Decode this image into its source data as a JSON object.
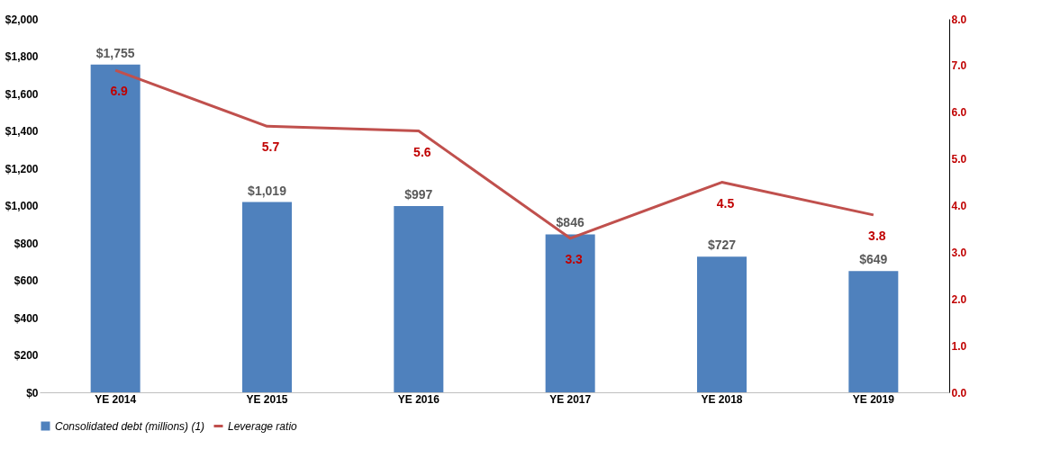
{
  "chart_data": {
    "type": "bar",
    "categories": [
      "YE 2014",
      "YE 2015",
      "YE 2016",
      "YE 2017",
      "YE 2018",
      "YE 2019"
    ],
    "series": [
      {
        "name": "Consolidated debt (millions) (1)",
        "color": "#4f81bd",
        "values": [
          1755,
          1019,
          997,
          846,
          727,
          649
        ],
        "value_labels": [
          "$1,755",
          "$1,019",
          "$997",
          "$846",
          "$727",
          "$649"
        ]
      },
      {
        "name": "Leverage ratio",
        "type": "line",
        "axis": "y2",
        "color": "#c0504d",
        "values": [
          6.9,
          5.7,
          5.6,
          3.3,
          4.5,
          3.8
        ],
        "value_labels": [
          "6.9",
          "5.7",
          "5.6",
          "3.3",
          "4.5",
          "3.8"
        ]
      }
    ],
    "ylim": [
      0,
      2000
    ],
    "yticks": [
      {
        "value": 0,
        "label": "$0"
      },
      {
        "value": 200,
        "label": "$200"
      },
      {
        "value": 400,
        "label": "$400"
      },
      {
        "value": 600,
        "label": "$600"
      },
      {
        "value": 800,
        "label": "$800"
      },
      {
        "value": 1000,
        "label": "$1,000"
      },
      {
        "value": 1200,
        "label": "$1,200"
      },
      {
        "value": 1400,
        "label": "$1,400"
      },
      {
        "value": 1600,
        "label": "$1,600"
      },
      {
        "value": 1800,
        "label": "$1,800"
      },
      {
        "value": 2000,
        "label": "$2,000"
      }
    ],
    "y2lim": [
      0,
      8
    ],
    "y2ticks": [
      {
        "value": 0,
        "label": "0.0"
      },
      {
        "value": 1,
        "label": "1.0"
      },
      {
        "value": 2,
        "label": "2.0"
      },
      {
        "value": 3,
        "label": "3.0"
      },
      {
        "value": 4,
        "label": "4.0"
      },
      {
        "value": 5,
        "label": "5.0"
      },
      {
        "value": 6,
        "label": "6.0"
      },
      {
        "value": 7,
        "label": "7.0"
      },
      {
        "value": 8,
        "label": "8.0"
      }
    ],
    "legend": "bottom",
    "grid": false,
    "marker": "none",
    "line_style": "solid"
  }
}
